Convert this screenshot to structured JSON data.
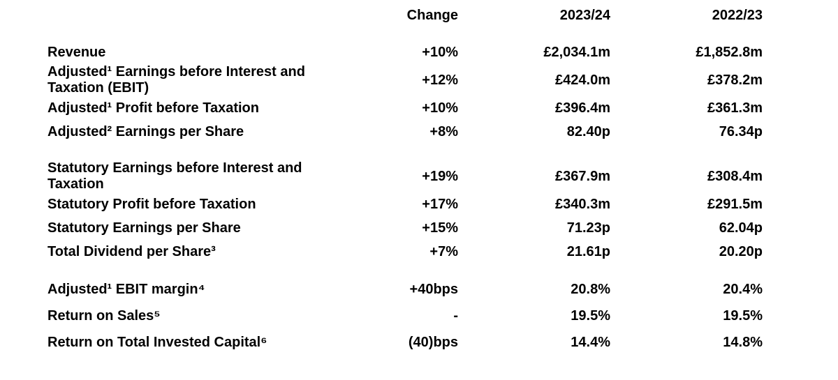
{
  "colors": {
    "text": "#000000",
    "background": "#ffffff"
  },
  "table": {
    "headers": {
      "label": "",
      "change": "Change",
      "fy24": "2023/24",
      "fy23": "2022/23"
    },
    "sections": [
      {
        "name": "adjusted-results",
        "rows": [
          {
            "label": "Revenue",
            "change": "+10%",
            "fy24": "£2,034.1m",
            "fy23": "£1,852.8m"
          },
          {
            "label": "Adjusted¹ Earnings before Interest and Taxation (EBIT)",
            "change": "+12%",
            "fy24": "£424.0m",
            "fy23": "£378.2m"
          },
          {
            "label": "Adjusted¹ Profit before Taxation",
            "change": "+10%",
            "fy24": "£396.4m",
            "fy23": "£361.3m"
          },
          {
            "label": "Adjusted² Earnings per Share",
            "change": "+8%",
            "fy24": "82.40p",
            "fy23": "76.34p"
          }
        ]
      },
      {
        "name": "statutory-results",
        "rows": [
          {
            "label": "Statutory Earnings before Interest and Taxation",
            "change": "+19%",
            "fy24": "£367.9m",
            "fy23": "£308.4m"
          },
          {
            "label": "Statutory Profit before Taxation",
            "change": "+17%",
            "fy24": "£340.3m",
            "fy23": "£291.5m"
          },
          {
            "label": "Statutory Earnings per Share",
            "change": "+15%",
            "fy24": "71.23p",
            "fy23": "62.04p"
          },
          {
            "label": "Total Dividend per Share³",
            "change": "+7%",
            "fy24": "21.61p",
            "fy23": "20.20p"
          }
        ]
      },
      {
        "name": "ratios",
        "rows": [
          {
            "label": "Adjusted¹ EBIT margin⁴",
            "change": "+40bps",
            "fy24": "20.8%",
            "fy23": "20.4%"
          },
          {
            "label": "Return on Sales⁵",
            "change": "-",
            "fy24": "19.5%",
            "fy23": "19.5%"
          },
          {
            "label": "Return on Total Invested Capital⁶",
            "change": "(40)bps",
            "fy24": "14.4%",
            "fy23": "14.8%"
          }
        ]
      }
    ]
  }
}
